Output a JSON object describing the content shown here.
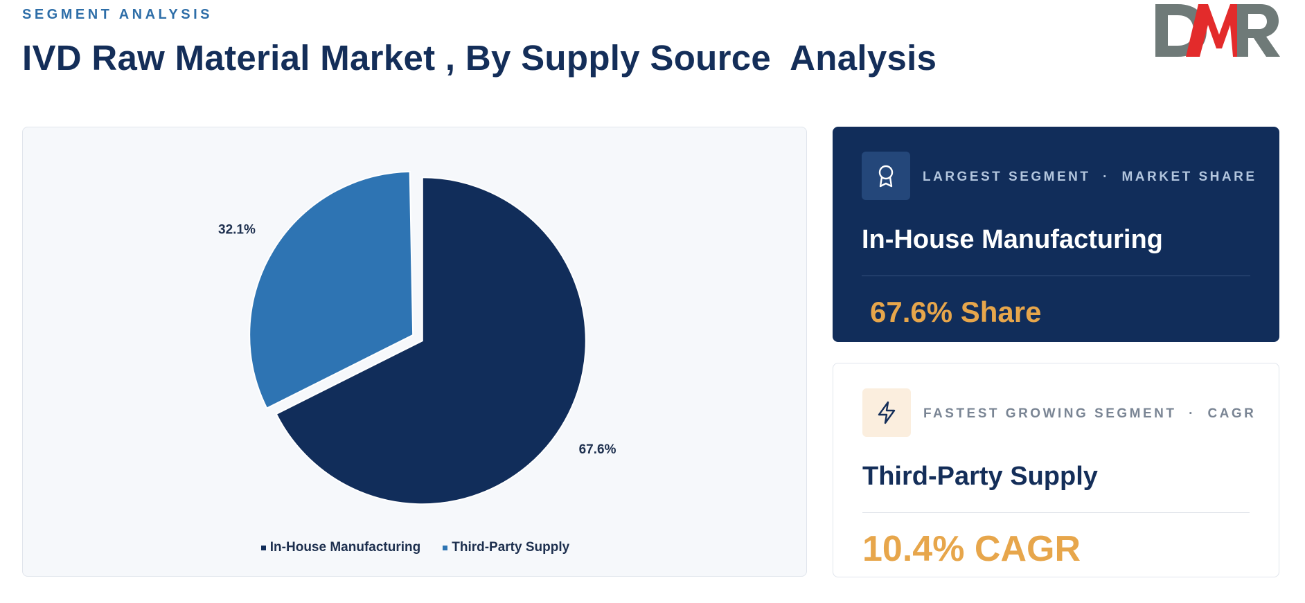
{
  "header": {
    "eyebrow": "SEGMENT ANALYSIS",
    "title": "IVD Raw Material Market , By Supply Source  Analysis",
    "logo_text": "DMR"
  },
  "colors": {
    "in_house": "#112d5a",
    "third_party": "#2e74b3",
    "accent": "#e7a64b",
    "logo_gray": "#6f7a78",
    "logo_red": "#e32b2b"
  },
  "chart_data": {
    "type": "pie",
    "title": "",
    "legend_position": "bottom",
    "slices": [
      {
        "label": "In-House Manufacturing",
        "value": 67.6,
        "display": "67.6%",
        "color": "#112d5a"
      },
      {
        "label": "Third-Party Supply",
        "value": 32.1,
        "display": "32.1%",
        "color": "#2e74b3"
      }
    ]
  },
  "cards": {
    "largest": {
      "icon": "award-icon",
      "label": "LARGEST SEGMENT  ·  MARKET SHARE",
      "segment": "In-House Manufacturing",
      "metric": "67.6% Share"
    },
    "fastest": {
      "icon": "lightning-icon",
      "label": "FASTEST GROWING SEGMENT  ·  CAGR",
      "segment": "Third-Party Supply",
      "metric": "10.4% CAGR"
    }
  }
}
